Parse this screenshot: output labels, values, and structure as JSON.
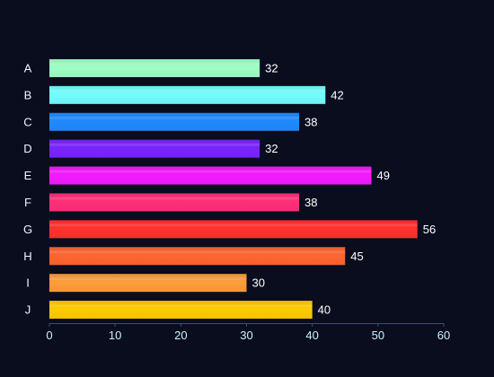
{
  "chart_data": {
    "type": "bar",
    "orientation": "horizontal",
    "categories": [
      "A",
      "B",
      "C",
      "D",
      "E",
      "F",
      "G",
      "H",
      "I",
      "J"
    ],
    "values": [
      32,
      42,
      38,
      32,
      49,
      38,
      56,
      45,
      30,
      40
    ],
    "xlim": [
      0,
      60
    ],
    "xticks": [
      "0",
      "10",
      "20",
      "30",
      "40",
      "50",
      "60"
    ],
    "title": "",
    "xlabel": "",
    "ylabel": "",
    "grid": false,
    "legend": false,
    "colors": [
      "#9effc4",
      "#73feff",
      "#1f8bff",
      "#7a24ff",
      "#f31bff",
      "#ff2f79",
      "#ff322f",
      "#ff6530",
      "#ff9d39",
      "#ffcb00"
    ],
    "axis_color": "#3a4d7a",
    "background": "#090d1e"
  }
}
